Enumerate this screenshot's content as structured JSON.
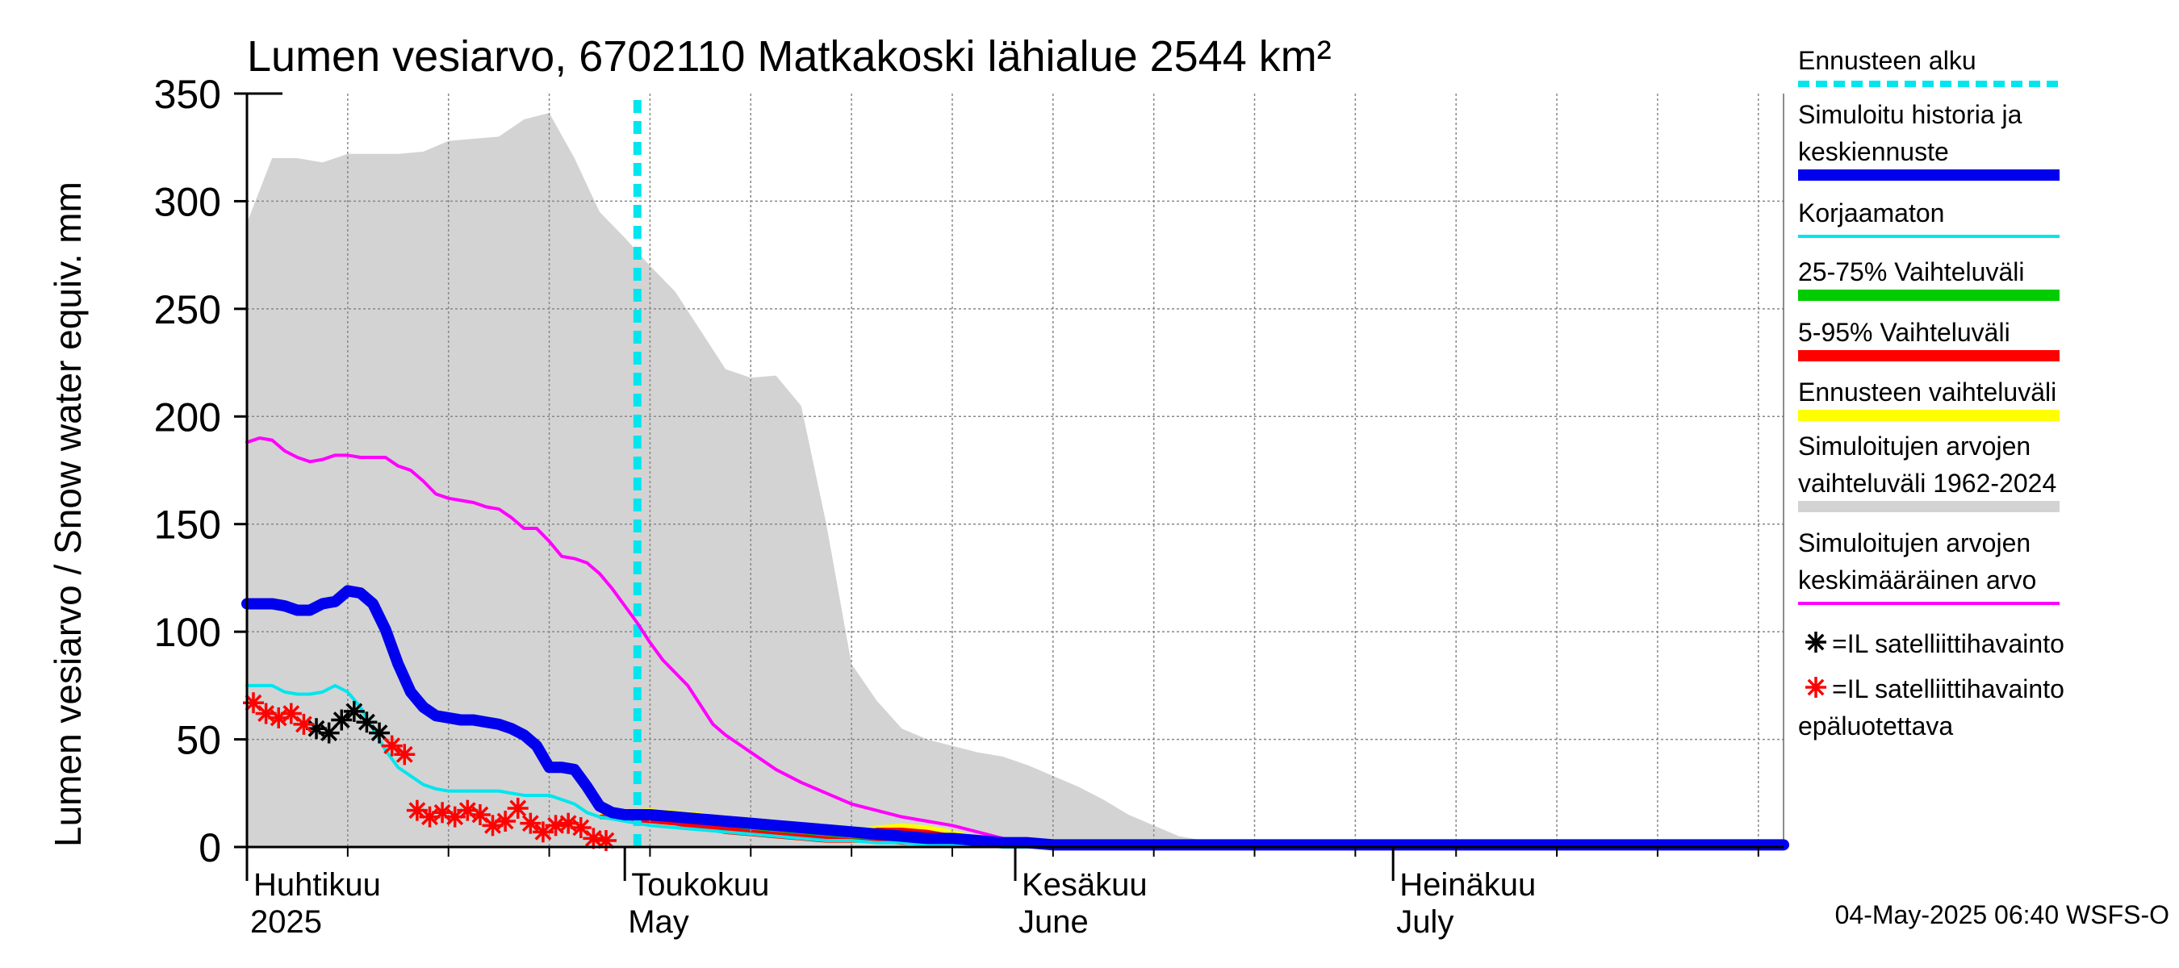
{
  "chart_data": {
    "type": "area",
    "title": "Lumen vesiarvo, 6702110 Matkakoski lähialue 2544 km²",
    "ylabel": "Lumen vesiarvo / Snow water equiv.    mm",
    "ylim": [
      0,
      350
    ],
    "yticks": [
      "0",
      "50",
      "100",
      "150",
      "200",
      "250",
      "300",
      "350"
    ],
    "x_range_days": [
      0,
      122
    ],
    "forecast_start_day": 31,
    "month_labels": [
      {
        "fi": "Huhtikuu",
        "en": "2025",
        "day": 0
      },
      {
        "fi": "Toukokuu",
        "en": "May",
        "day": 30
      },
      {
        "fi": "Kesäkuu",
        "en": "June",
        "day": 61
      },
      {
        "fi": "Heinäkuu",
        "en": "July",
        "day": 91
      }
    ],
    "series": [
      {
        "name": "Simuloitujen arvojen vaihteluväli 1962-2024",
        "color": "#d3d3d3",
        "x": [
          0,
          2,
          4,
          6,
          8,
          10,
          12,
          14,
          16,
          18,
          20,
          22,
          24,
          26,
          28,
          30,
          32,
          34,
          36,
          38,
          40,
          42,
          44,
          46,
          48,
          50,
          52,
          54,
          56,
          58,
          60,
          62,
          64,
          66,
          68,
          70,
          72,
          74,
          76,
          78,
          80,
          122
        ],
        "upper": [
          290,
          320,
          320,
          318,
          322,
          322,
          322,
          323,
          328,
          329,
          330,
          338,
          341,
          320,
          295,
          283,
          270,
          258,
          240,
          222,
          218,
          219,
          205,
          150,
          85,
          68,
          55,
          50,
          47,
          44,
          42,
          38,
          33,
          28,
          22,
          15,
          10,
          5,
          3,
          1,
          0,
          0
        ],
        "lower": [
          0,
          0,
          0,
          0,
          0,
          0,
          0,
          0,
          0,
          0,
          0,
          0,
          0,
          0,
          0,
          0,
          0,
          0,
          0,
          0,
          0,
          0,
          0,
          0,
          0,
          0,
          0,
          0,
          0,
          0,
          0,
          0,
          0,
          0,
          0,
          0,
          0,
          0,
          0,
          0,
          0,
          0
        ]
      },
      {
        "name": "Ennusteen vaihteluväli",
        "color": "#ffff00",
        "x": [
          28,
          30,
          32,
          34,
          36,
          38,
          40,
          42,
          44,
          46,
          48,
          50,
          52,
          54,
          56,
          58,
          60,
          62
        ],
        "upper": [
          16,
          17,
          18,
          17,
          16,
          14,
          12,
          10,
          9,
          8,
          8,
          10,
          11,
          10,
          8,
          5,
          2,
          0
        ],
        "lower": [
          13,
          12,
          11,
          10,
          8,
          6,
          5,
          4,
          3,
          2,
          2,
          2,
          1,
          1,
          1,
          0,
          0,
          0
        ]
      },
      {
        "name": "5-95% Vaihteluväli",
        "color": "#ff0000",
        "x": [
          28,
          30,
          32,
          34,
          36,
          38,
          40,
          42,
          44,
          46,
          48,
          50,
          52,
          54,
          56,
          58,
          60,
          62
        ],
        "upper": [
          15,
          16,
          17,
          16,
          15,
          13,
          11,
          9,
          8,
          7,
          6,
          9,
          9,
          8,
          6,
          4,
          2,
          0
        ],
        "lower": [
          13,
          12,
          11,
          10,
          8,
          6,
          5,
          4,
          3,
          2,
          2,
          2,
          1,
          1,
          1,
          0,
          0,
          0
        ]
      },
      {
        "name": "25-75% Vaihteluväli",
        "color": "#00cc00",
        "x": [
          28,
          32,
          36,
          40,
          44,
          48,
          52,
          56,
          60,
          62
        ],
        "upper": [
          14,
          14,
          12,
          9,
          7,
          5,
          4,
          3,
          1,
          0
        ],
        "lower": [
          13,
          13,
          11,
          8,
          6,
          4,
          3,
          2,
          0,
          0
        ]
      },
      {
        "name": "Simuloitujen arvojen keskimääräinen arvo",
        "color": "#ff00ff",
        "x": [
          0,
          1,
          2,
          3,
          4,
          5,
          6,
          7,
          8,
          9,
          10,
          11,
          12,
          13,
          14,
          15,
          16,
          17,
          18,
          19,
          20,
          21,
          22,
          23,
          24,
          25,
          26,
          27,
          28,
          29,
          30,
          31,
          32,
          33,
          34,
          35,
          36,
          37,
          38,
          39,
          40,
          42,
          44,
          46,
          48,
          50,
          52,
          54,
          56,
          58,
          60,
          62,
          64,
          122
        ],
        "values": [
          188,
          190,
          189,
          184,
          181,
          179,
          180,
          182,
          182,
          181,
          181,
          181,
          177,
          175,
          170,
          164,
          162,
          161,
          160,
          158,
          157,
          153,
          148,
          148,
          142,
          135,
          134,
          132,
          127,
          120,
          112,
          104,
          95,
          87,
          81,
          75,
          66,
          57,
          52,
          48,
          44,
          36,
          30,
          25,
          20,
          17,
          14,
          12,
          10,
          7,
          4,
          1,
          0,
          0
        ]
      },
      {
        "name": "Korjaamaton",
        "color": "#00e5ee",
        "x": [
          0,
          1,
          2,
          3,
          4,
          5,
          6,
          7,
          8,
          9,
          10,
          11,
          12,
          13,
          14,
          15,
          16,
          17,
          18,
          19,
          20,
          21,
          22,
          23,
          24,
          25,
          26,
          27,
          28,
          29,
          30,
          31,
          32,
          34,
          36,
          38,
          40,
          42,
          44,
          46,
          48,
          50,
          52,
          54,
          56,
          58,
          60,
          62,
          122
        ],
        "values": [
          75,
          75,
          75,
          72,
          71,
          71,
          72,
          75,
          72,
          65,
          55,
          45,
          37,
          33,
          29,
          27,
          26,
          26,
          26,
          26,
          26,
          25,
          24,
          24,
          24,
          22,
          20,
          16,
          14,
          13,
          12,
          11,
          10,
          9,
          8,
          7,
          6,
          5,
          4,
          3,
          3,
          2,
          2,
          1,
          1,
          1,
          0,
          0,
          0
        ]
      },
      {
        "name": "Simuloitu historia ja keskiennuste",
        "color": "#0000ee",
        "x": [
          0,
          1,
          2,
          3,
          4,
          5,
          6,
          7,
          8,
          9,
          10,
          11,
          12,
          13,
          14,
          15,
          16,
          17,
          18,
          19,
          20,
          21,
          22,
          23,
          24,
          25,
          26,
          27,
          28,
          29,
          30,
          31,
          32,
          34,
          36,
          38,
          40,
          42,
          44,
          46,
          48,
          50,
          52,
          54,
          56,
          58,
          60,
          62,
          64,
          66,
          122
        ],
        "values": [
          113,
          113,
          113,
          112,
          110,
          110,
          113,
          114,
          119,
          118,
          113,
          101,
          85,
          72,
          65,
          61,
          60,
          59,
          59,
          58,
          57,
          55,
          52,
          47,
          37,
          37,
          36,
          28,
          19,
          16,
          15,
          15,
          15,
          14,
          13,
          12,
          11,
          10,
          9,
          8,
          7,
          6,
          5,
          4,
          4,
          3,
          2,
          2,
          1,
          1,
          1
        ]
      }
    ],
    "markers": [
      {
        "name": "=IL satelliittihavainto",
        "color": "#000000",
        "x": [
          5,
          6,
          7,
          8,
          9,
          10
        ],
        "y": [
          55,
          53,
          59,
          63,
          58,
          53
        ]
      },
      {
        "name": "=IL satelliittihavainto epäluotettava",
        "color": "#ff0000",
        "x": [
          0,
          1,
          2,
          3,
          4,
          11,
          12,
          13,
          14,
          15,
          16,
          17,
          18,
          19,
          20,
          21,
          22,
          23,
          24,
          25,
          26,
          27,
          28
        ],
        "y": [
          67,
          62,
          60,
          62,
          57,
          47,
          43,
          17,
          14,
          16,
          14,
          17,
          15,
          10,
          12,
          18,
          11,
          7,
          10,
          11,
          9,
          4,
          3
        ]
      }
    ],
    "legend": [
      {
        "label": "Ennusteen alku",
        "color": "#00e5ee",
        "style": "dashed"
      },
      {
        "label": "Simuloitu historia ja\nkeskiennuste",
        "color": "#0000ee",
        "style": "thick"
      },
      {
        "label": "Korjaamaton",
        "color": "#00e5ee",
        "style": "thin"
      },
      {
        "label": "25-75% Vaihteluväli",
        "color": "#00cc00",
        "style": "thick"
      },
      {
        "label": "5-95% Vaihteluväli",
        "color": "#ff0000",
        "style": "thick"
      },
      {
        "label": "Ennusteen vaihteluväli",
        "color": "#ffff00",
        "style": "thick"
      },
      {
        "label": "Simuloitujen arvojen\nvaihteluväli 1962-2024",
        "color": "#d3d3d3",
        "style": "thick"
      },
      {
        "label": "Simuloitujen arvojen\nkeskimääräinen arvo",
        "color": "#ff00ff",
        "style": "thin"
      },
      {
        "label": "=IL satelliittihavainto",
        "color": "#000000",
        "style": "star"
      },
      {
        "label": "=IL satelliittihavainto\nepäluotettava",
        "color": "#ff0000",
        "style": "star"
      }
    ],
    "footer": "04-May-2025 06:40 WSFS-O"
  }
}
